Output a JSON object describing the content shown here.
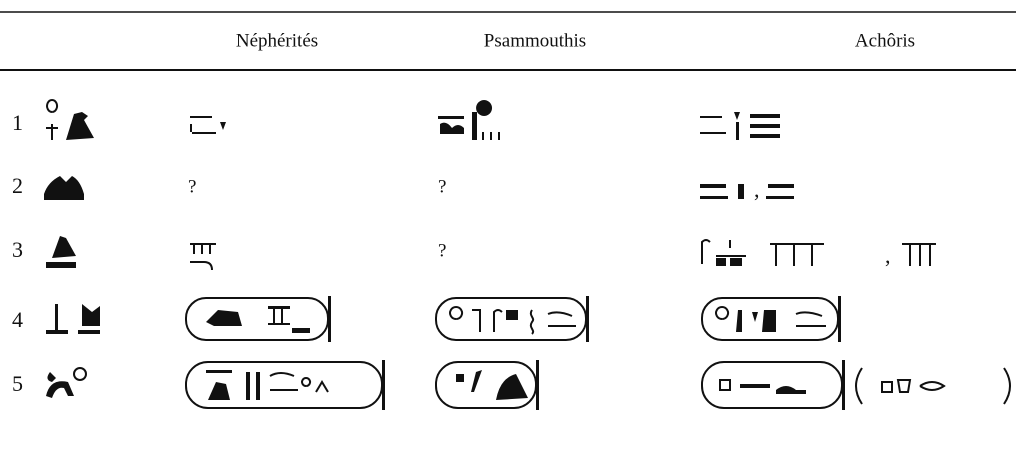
{
  "table": {
    "header": [
      "Néphérités",
      "Psammouthis",
      "Achôris"
    ],
    "rows": [
      {
        "number": "1"
      },
      {
        "number": "2",
        "nepherites": "?",
        "psammouthis": "?",
        "achoris": ","
      },
      {
        "number": "3",
        "psammouthis": "?",
        "achoris": ","
      },
      {
        "number": "4"
      },
      {
        "number": "5"
      }
    ]
  }
}
